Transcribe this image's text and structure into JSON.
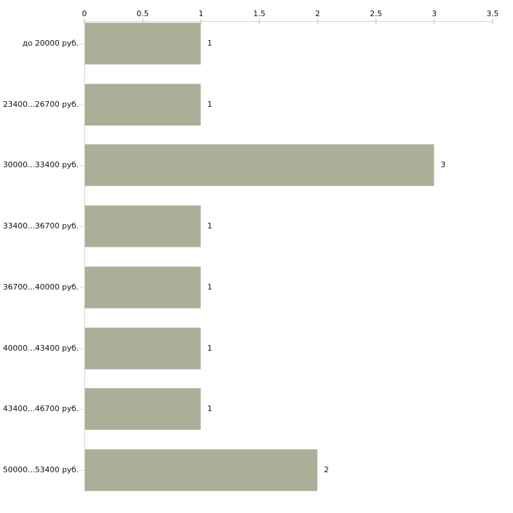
{
  "chart_data": {
    "type": "bar",
    "orientation": "horizontal",
    "title": "",
    "xlabel": "",
    "ylabel": "",
    "categories": [
      "до 20000 руб.",
      "23400...26700 руб.",
      "30000...33400 руб.",
      "33400...36700 руб.",
      "36700...40000 руб.",
      "40000...43400 руб.",
      "43400...46700 руб.",
      "50000...53400 руб."
    ],
    "values": [
      1,
      1,
      3,
      1,
      1,
      1,
      1,
      2
    ],
    "value_labels": [
      "1",
      "1",
      "3",
      "1",
      "1",
      "1",
      "1",
      "2"
    ],
    "x_ticks": [
      0,
      0.5,
      1,
      1.5,
      2,
      2.5,
      3,
      3.5
    ],
    "x_tick_labels": [
      "0",
      "0.5",
      "1",
      "1.5",
      "2",
      "2.5",
      "3",
      "3.5"
    ],
    "xlim": [
      0,
      3.5
    ],
    "axis_position": "top",
    "grid": false,
    "legend": null,
    "colors": {
      "bar_fill": "#aab097",
      "bar_border": "#c9cdbb",
      "axis_line": "#d5d5cd",
      "tick_mark": "#d8dac1",
      "text": "#111111",
      "background": "#ffffff"
    }
  }
}
